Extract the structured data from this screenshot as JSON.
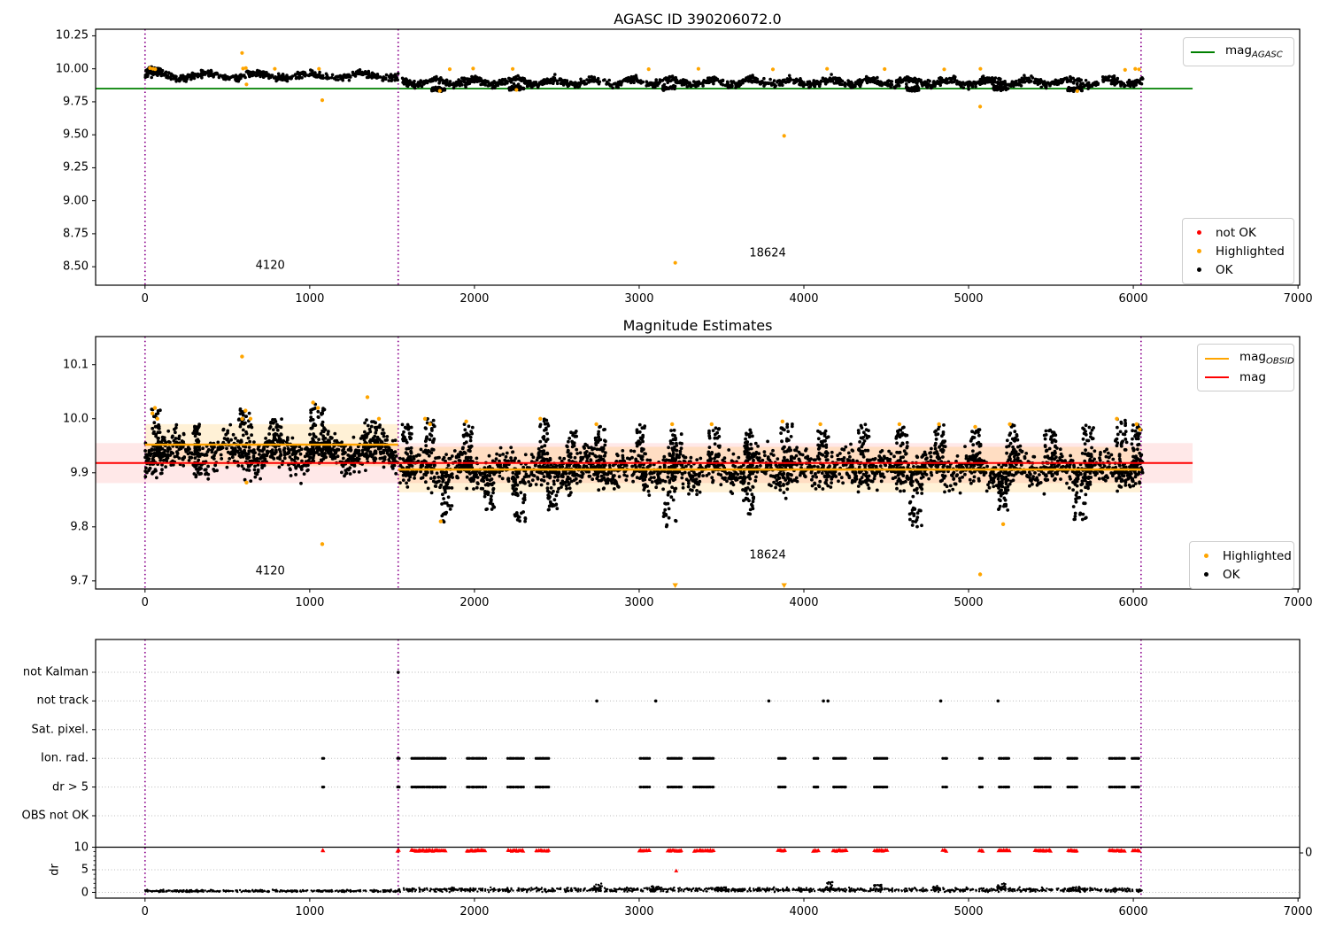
{
  "colors": {
    "ok": "#000000",
    "highlighted": "#FFA500",
    "not_ok": "#FF0000",
    "agasc_line": "#008000",
    "mag_line": "#FF0000",
    "obsid_line": "#FFA500",
    "vline": "#8B008B",
    "mag_band": "rgba(255,0,0,0.09)",
    "obsid_band": "rgba(255,165,0,0.16)",
    "grid": "#bbbbbb",
    "spine": "#000000"
  },
  "chart_data": [
    {
      "type": "scatter",
      "title": "AGASC ID 390206072.0",
      "xlim": [
        -300,
        7010
      ],
      "ylim": [
        8.36,
        10.3
      ],
      "xticks": [
        0,
        1000,
        2000,
        3000,
        4000,
        5000,
        6000,
        7000
      ],
      "ytick_labels": [
        "10.25",
        "10.00",
        "9.75",
        "9.50",
        "9.25",
        "9.00",
        "8.75",
        "8.50"
      ],
      "yticks": [
        10.25,
        10.0,
        9.75,
        9.5,
        9.25,
        9.0,
        8.75,
        8.5
      ],
      "vlines": [
        0,
        1537,
        6047
      ],
      "ref_line": {
        "y": 9.85,
        "x0": -300,
        "x1": 6360,
        "label_main": "mag",
        "label_sub": "AGASC"
      },
      "legend_markers": [
        {
          "label": "not OK",
          "color": "#FF0000"
        },
        {
          "label": "Highlighted",
          "color": "#FFA500"
        },
        {
          "label": "OK",
          "color": "#000000"
        }
      ],
      "annotations": [
        {
          "text": "4120",
          "x": 760,
          "y": 8.51
        },
        {
          "text": "18624",
          "x": 3780,
          "y": 8.6
        }
      ],
      "bands": [
        {
          "x0": 0,
          "x1": 1537,
          "n": 520,
          "y": 9.947,
          "jitter": 0.013,
          "wave": 0.018,
          "period": 310
        },
        {
          "x0": 1560,
          "x1": 6060,
          "n": 1500,
          "y": 9.9,
          "jitter": 0.014,
          "wave": 0.02,
          "period": 240
        },
        {
          "x0": 5,
          "x1": 95,
          "n": 50,
          "y": 9.99,
          "jitter": 0.009,
          "wave": 0,
          "period": 1
        }
      ],
      "dips": [
        [
          1740,
          1820,
          9.846
        ],
        [
          2210,
          2300,
          9.852
        ],
        [
          3140,
          3220,
          9.856
        ],
        [
          4620,
          4700,
          9.85
        ],
        [
          5150,
          5230,
          9.852
        ],
        [
          5600,
          5690,
          9.845
        ]
      ],
      "orange_points": [
        [
          30,
          10.005
        ],
        [
          48,
          10.0
        ],
        [
          62,
          9.997
        ],
        [
          595,
          10.002
        ],
        [
          612,
          10.006
        ],
        [
          788,
          10.0
        ],
        [
          1056,
          10.0
        ],
        [
          1850,
          9.997
        ],
        [
          1992,
          10.002
        ],
        [
          2232,
          9.999
        ],
        [
          3058,
          9.997
        ],
        [
          3360,
          10.0
        ],
        [
          3812,
          9.996
        ],
        [
          4141,
          10.0
        ],
        [
          4490,
          9.998
        ],
        [
          4852,
          9.996
        ],
        [
          5072,
          10.0
        ],
        [
          5950,
          9.992
        ],
        [
          6012,
          10.0
        ],
        [
          6035,
          9.996
        ],
        [
          1790,
          9.833
        ],
        [
          2255,
          9.84
        ],
        [
          5660,
          9.831
        ]
      ],
      "orange_outliers": [
        [
          589,
          10.12
        ],
        [
          616,
          9.882
        ],
        [
          1076,
          9.762
        ],
        [
          3219,
          8.53
        ],
        [
          3880,
          9.492
        ],
        [
          5070,
          9.713
        ]
      ]
    },
    {
      "type": "scatter",
      "title": "Magnitude Estimates",
      "xlim": [
        -300,
        7010
      ],
      "ylim": [
        9.685,
        10.152
      ],
      "xticks": [
        0,
        1000,
        2000,
        3000,
        4000,
        5000,
        6000,
        7000
      ],
      "ytick_labels": [
        "10.1",
        "10.0",
        "9.9",
        "9.8",
        "9.7"
      ],
      "yticks": [
        10.1,
        10.0,
        9.9,
        9.8,
        9.7
      ],
      "vlines": [
        0,
        1537,
        6047
      ],
      "mag_line": {
        "y": 9.918,
        "band": [
          9.881,
          9.955
        ],
        "x0": -300,
        "x1": 6360,
        "label": "mag"
      },
      "obsid_label_main": "mag",
      "obsid_label_sub": "OBSID",
      "obsid_segments": [
        {
          "x0": 0,
          "x1": 1537,
          "y": 9.952,
          "band": [
            9.912,
            9.99
          ]
        },
        {
          "x0": 1537,
          "x1": 6047,
          "y": 9.906,
          "band": [
            9.864,
            9.948
          ]
        }
      ],
      "legend_markers": [
        {
          "label": "Highlighted",
          "color": "#FFA500"
        },
        {
          "label": "OK",
          "color": "#000000"
        }
      ],
      "annotations": [
        {
          "text": "4120",
          "x": 760,
          "y": 9.717
        },
        {
          "text": "18624",
          "x": 3780,
          "y": 9.748
        }
      ],
      "bands": [
        {
          "x0": 0,
          "x1": 1537,
          "n": 850,
          "y": 9.936,
          "jitter": 0.016,
          "wave": 0.013,
          "period": 300
        },
        {
          "x0": 1545,
          "x1": 6060,
          "n": 2000,
          "y": 9.905,
          "jitter": 0.016,
          "wave": 0.012,
          "period": 260
        }
      ],
      "streaks_up": [
        [
          40,
          95,
          10.02
        ],
        [
          300,
          330,
          9.99
        ],
        [
          560,
          650,
          10.02
        ],
        [
          760,
          830,
          10.0
        ],
        [
          1000,
          1090,
          10.03
        ],
        [
          1330,
          1440,
          10.0
        ],
        [
          1560,
          1620,
          9.99
        ],
        [
          1700,
          1760,
          10.0
        ],
        [
          1930,
          1990,
          9.99
        ],
        [
          2390,
          2450,
          10.0
        ],
        [
          2560,
          2620,
          9.98
        ],
        [
          2730,
          2800,
          9.99
        ],
        [
          2980,
          3040,
          9.99
        ],
        [
          3190,
          3260,
          9.98
        ],
        [
          3420,
          3490,
          9.99
        ],
        [
          3640,
          3700,
          9.98
        ],
        [
          3860,
          3930,
          9.99
        ],
        [
          4080,
          4150,
          9.98
        ],
        [
          4330,
          4400,
          9.99
        ],
        [
          4560,
          4630,
          9.99
        ],
        [
          4790,
          4860,
          9.99
        ],
        [
          5010,
          5080,
          9.98
        ],
        [
          5230,
          5300,
          9.99
        ],
        [
          5460,
          5530,
          9.98
        ],
        [
          5690,
          5760,
          9.99
        ],
        [
          5890,
          5960,
          10.0
        ],
        [
          5990,
          6050,
          9.99
        ]
      ],
      "streaks_down": [
        [
          1800,
          1865,
          9.8
        ],
        [
          2060,
          2120,
          9.83
        ],
        [
          2230,
          2310,
          9.81
        ],
        [
          2440,
          2505,
          9.82
        ],
        [
          3140,
          3225,
          9.8
        ],
        [
          3630,
          3695,
          9.82
        ],
        [
          4640,
          4725,
          9.8
        ],
        [
          5180,
          5245,
          9.83
        ],
        [
          5630,
          5715,
          9.81
        ]
      ],
      "orange_points": [
        [
          45,
          10.01
        ],
        [
          60,
          10.02
        ],
        [
          75,
          10.0
        ],
        [
          590,
          10.0
        ],
        [
          610,
          10.015
        ],
        [
          640,
          10.0
        ],
        [
          1020,
          10.03
        ],
        [
          1050,
          10.02
        ],
        [
          1350,
          10.04
        ],
        [
          1420,
          10.0
        ],
        [
          1700,
          10.0
        ],
        [
          1730,
          9.99
        ],
        [
          1950,
          9.995
        ],
        [
          2400,
          10.0
        ],
        [
          2740,
          9.99
        ],
        [
          3200,
          9.99
        ],
        [
          3440,
          9.99
        ],
        [
          3870,
          9.995
        ],
        [
          4100,
          9.99
        ],
        [
          4580,
          9.99
        ],
        [
          4820,
          9.99
        ],
        [
          5040,
          9.985
        ],
        [
          5250,
          9.99
        ],
        [
          5900,
          10.0
        ],
        [
          6020,
          9.99
        ],
        [
          6040,
          9.98
        ],
        [
          1795,
          9.81
        ],
        [
          5210,
          9.805
        ]
      ],
      "orange_outliers": [
        [
          589,
          10.115
        ],
        [
          616,
          9.882
        ],
        [
          1076,
          9.768
        ],
        [
          5070,
          9.712
        ]
      ],
      "clipped_x": [
        3219,
        3880
      ]
    },
    {
      "type": "flags",
      "categories": [
        "not Kalman",
        "not track",
        "Sat. pixel.",
        "Ion. rad.",
        "dr > 5",
        "OBS not OK"
      ],
      "dr_ticks": [
        "10",
        "5",
        "0"
      ],
      "ylabel": "dr",
      "right_label": "0",
      "threshold_dr": 10,
      "xticks": [
        0,
        1000,
        2000,
        3000,
        4000,
        5000,
        6000,
        7000
      ],
      "vlines": [
        0,
        1537,
        6047
      ],
      "not_kalman_x": [
        1537
      ],
      "not_track_x": [
        2743,
        3101,
        3787,
        4119,
        4146,
        4831,
        5179
      ],
      "sat_pixel_x": [],
      "obs_not_ok_x": [],
      "event_clusters": [
        [
          1075,
          1085
        ],
        [
          1528,
          1545
        ],
        [
          1612,
          1830
        ],
        [
          1950,
          2070
        ],
        [
          2200,
          2300
        ],
        [
          2370,
          2455
        ],
        [
          3000,
          3065
        ],
        [
          3170,
          3260
        ],
        [
          3330,
          3455
        ],
        [
          3840,
          3890
        ],
        [
          4055,
          4090
        ],
        [
          4175,
          4260
        ],
        [
          4425,
          4510
        ],
        [
          4840,
          4870
        ],
        [
          5060,
          5090
        ],
        [
          5180,
          5250
        ],
        [
          5400,
          5500
        ],
        [
          5600,
          5660
        ],
        [
          5850,
          5950
        ],
        [
          5990,
          6040
        ]
      ],
      "red_single": [
        [
          3225,
          4.8
        ]
      ],
      "dr_trace": {
        "x0": 0,
        "x1": 6060,
        "n": 1500,
        "base1": 0.3,
        "base2": 0.55,
        "split": 1540,
        "jit1": 0.12,
        "jit2": 0.22,
        "spikes": [
          [
            2750,
            2.0
          ],
          [
            3100,
            1.4
          ],
          [
            3500,
            1.2
          ],
          [
            4150,
            2.3
          ],
          [
            4450,
            1.7
          ],
          [
            4800,
            1.5
          ],
          [
            5200,
            2.1
          ],
          [
            5650,
            1.3
          ]
        ]
      }
    }
  ]
}
